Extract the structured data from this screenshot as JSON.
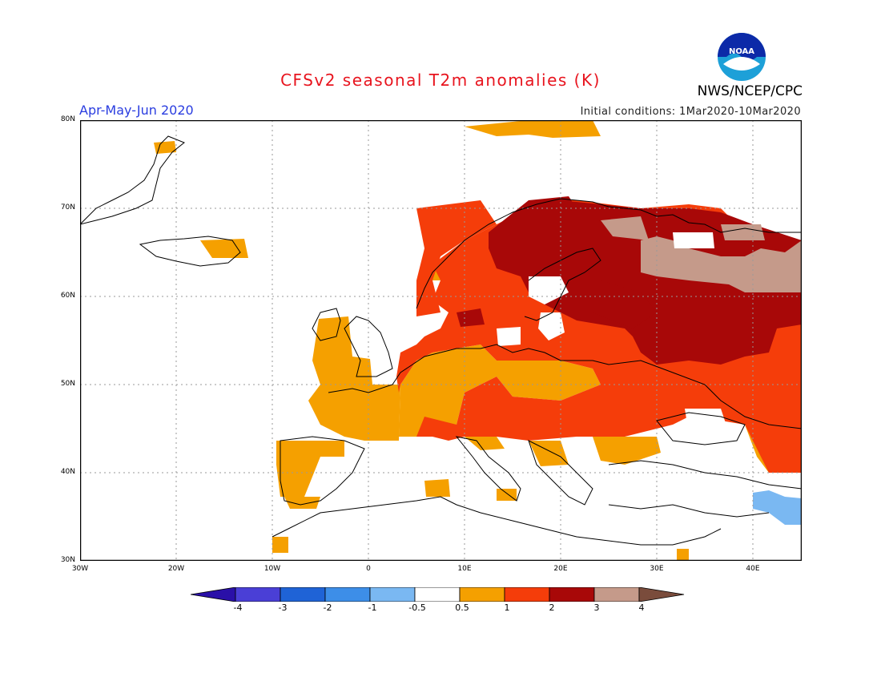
{
  "header": {
    "title": "CFSv2 seasonal T2m anomalies (K)",
    "period": "Apr-May-Jun 2020",
    "initial_conditions": "Initial conditions: 1Mar2020-10Mar2020",
    "agency": "NWS/NCEP/CPC",
    "logo_text": "NOAA"
  },
  "axes": {
    "lat_labels": [
      "80N",
      "70N",
      "60N",
      "50N",
      "40N",
      "30N"
    ],
    "lon_labels": [
      "30W",
      "20W",
      "10W",
      "0",
      "10E",
      "20E",
      "30E",
      "40E"
    ],
    "lat_range": [
      30,
      80
    ],
    "lon_range": [
      -30,
      45
    ],
    "grid": "dotted"
  },
  "colorbar": {
    "labels": [
      "-4",
      "-3",
      "-2",
      "-1",
      "-0.5",
      "0.5",
      "1",
      "2",
      "3",
      "4"
    ],
    "colors": [
      "#2a10a8",
      "#4a3fd6",
      "#1f63d6",
      "#3d8ee8",
      "#7ab8f2",
      "#ffffff",
      "#f5a000",
      "#f53d0a",
      "#a80808",
      "#c59a8a",
      "#7a4c3c"
    ]
  },
  "colors": {
    "c05": "#f5a000",
    "c1": "#f53d0a",
    "c2": "#a80808",
    "c3": "#c59a8a",
    "neg05": "#7ab8f2"
  }
}
